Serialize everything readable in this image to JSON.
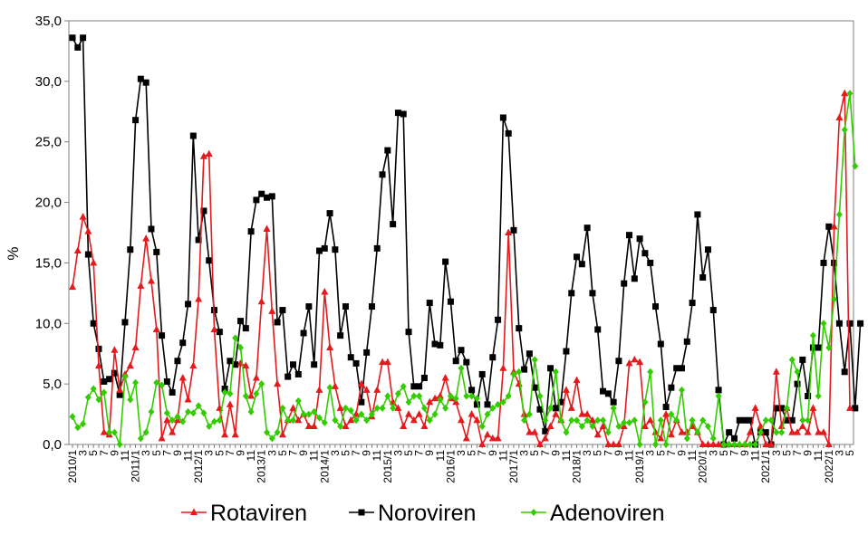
{
  "chart_data": {
    "type": "line",
    "ylabel": "%",
    "ylim": [
      0,
      35
    ],
    "y_ticks": [
      "0,0",
      "5,0",
      "10,0",
      "15,0",
      "20,0",
      "25,0",
      "30,0",
      "35,0"
    ],
    "y_tick_values": [
      0,
      5,
      10,
      15,
      20,
      25,
      30,
      35
    ],
    "x_tick_labels": [
      "2010/1",
      "3",
      "5",
      "7",
      "9",
      "11",
      "2011/1",
      "3",
      "5",
      "7",
      "9",
      "11",
      "2012/1",
      "3",
      "5",
      "7",
      "9",
      "11",
      "2013/1",
      "3",
      "5",
      "7",
      "9",
      "11",
      "2014/1",
      "3",
      "5",
      "7",
      "9",
      "11",
      "2015/1",
      "3",
      "5",
      "7",
      "9",
      "11",
      "2016/1",
      "3",
      "5",
      "7",
      "9",
      "11",
      "2017/1",
      "3",
      "5",
      "7",
      "9",
      "11",
      "2018/1",
      "3",
      "5",
      "7",
      "9",
      "11",
      "2019/1",
      "3",
      "5",
      "7",
      "9",
      "11",
      "2020/1",
      "3",
      "5",
      "7",
      "9",
      "11",
      "2021/1",
      "3",
      "5",
      "7",
      "9",
      "11",
      "2022/1",
      "3",
      "5"
    ],
    "legend_position": "bottom",
    "grid": false,
    "series": [
      {
        "name": "Rotaviren",
        "color": "#e41a1c",
        "marker": "triangle",
        "values": [
          13.0,
          16.0,
          18.8,
          17.6,
          15.0,
          6.5,
          1.0,
          0.8,
          7.8,
          4.5,
          5.8,
          6.5,
          8.0,
          13.1,
          17.0,
          13.5,
          9.5,
          0.5,
          2.0,
          1.0,
          2.0,
          5.5,
          3.7,
          6.5,
          12.0,
          23.8,
          24.0,
          9.5,
          3.0,
          0.8,
          3.3,
          0.8,
          6.7,
          6.5,
          4.0,
          5.5,
          11.8,
          17.8,
          11.0,
          5.0,
          0.8,
          2.0,
          3.0,
          2.0,
          2.5,
          1.5,
          1.5,
          4.5,
          12.6,
          8.0,
          4.8,
          3.0,
          1.5,
          2.0,
          2.5,
          5.0,
          4.5,
          2.3,
          4.5,
          6.8,
          6.8,
          3.5,
          3.0,
          1.5,
          2.5,
          2.0,
          2.5,
          1.5,
          3.5,
          3.8,
          4.0,
          5.5,
          3.8,
          3.5,
          2.0,
          0.5,
          2.5,
          2.0,
          0.0,
          0.8,
          0.5,
          0.5,
          6.3,
          17.5,
          6.0,
          5.0,
          2.5,
          1.0,
          1.0,
          0.0,
          0.5,
          1.5,
          2.5,
          2.0,
          4.5,
          3.0,
          5.3,
          2.5,
          2.5,
          2.0,
          0.8,
          1.5,
          0.0,
          0.0,
          0.0,
          1.5,
          6.7,
          7.0,
          6.8,
          1.5,
          2.0,
          1.0,
          0.5,
          2.5,
          0.8,
          2.0,
          1.0,
          1.0,
          1.5,
          1.0,
          0.0,
          0.0,
          0.0,
          0.0,
          0.0,
          0.0,
          0.0,
          0.0,
          0.0,
          1.0,
          3.0,
          1.5,
          0.0,
          0.0,
          6.0,
          1.5,
          3.0,
          1.0,
          1.0,
          1.5,
          1.0,
          3.0,
          1.0,
          1.0,
          0.0,
          18.0,
          27.0,
          29.0,
          3.0
        ]
      },
      {
        "name": "Noroviren",
        "color": "#000000",
        "marker": "square",
        "values": [
          33.6,
          32.8,
          33.6,
          15.7,
          10.0,
          7.9,
          5.2,
          5.4,
          5.9,
          4.1,
          10.1,
          16.1,
          26.8,
          30.2,
          29.9,
          17.8,
          15.9,
          9.0,
          5.2,
          4.3,
          6.9,
          8.4,
          11.6,
          25.5,
          16.9,
          19.3,
          15.2,
          11.1,
          9.3,
          4.6,
          6.9,
          6.6,
          10.2,
          9.6,
          17.6,
          20.2,
          20.7,
          20.4,
          20.5,
          10.1,
          11.1,
          5.6,
          6.6,
          5.8,
          9.2,
          11.4,
          6.6,
          16.0,
          16.2,
          19.1,
          16.1,
          9.0,
          11.4,
          7.2,
          6.7,
          3.5,
          7.6,
          11.4,
          16.2,
          22.3,
          24.3,
          18.2,
          27.4,
          27.3,
          9.3,
          4.8,
          4.8,
          5.5,
          11.7,
          8.3,
          8.2,
          15.1,
          11.8,
          6.9,
          7.8,
          6.8,
          4.5,
          3.3,
          5.8,
          3.3,
          7.2,
          10.3,
          27.0,
          25.7,
          17.7,
          9.6,
          6.2,
          7.5,
          4.7,
          2.9,
          1.1,
          6.3,
          3.0,
          3.5,
          7.7,
          12.5,
          15.5,
          14.9,
          17.9,
          12.5,
          9.5,
          4.4,
          4.2,
          3.5,
          6.9,
          13.3,
          17.3,
          13.7,
          17.0,
          15.8,
          15.0,
          11.4,
          8.3,
          3.1,
          4.7,
          6.3,
          6.3,
          8.5,
          11.7,
          19.0,
          13.8,
          16.1,
          11.1,
          4.5,
          0.0,
          1.0,
          0.5,
          2.0,
          2.0,
          2.0,
          0.0,
          1.0,
          1.0,
          0.0,
          3.0,
          3.0,
          2.0,
          2.0,
          5.0,
          7.0,
          4.0,
          8.0,
          8.0,
          15.0,
          18.0,
          15.0,
          10.0,
          6.0,
          10.0,
          3.0,
          10.0
        ]
      },
      {
        "name": "Adenoviren",
        "color": "#33cc00",
        "marker": "diamond",
        "values": [
          2.3,
          1.4,
          1.7,
          3.9,
          4.6,
          3.7,
          4.3,
          1.0,
          1.0,
          0.0,
          5.6,
          3.7,
          5.1,
          0.5,
          1.0,
          2.7,
          5.1,
          4.9,
          2.6,
          2.0,
          2.3,
          1.9,
          2.7,
          2.6,
          3.2,
          2.6,
          1.5,
          1.9,
          2.0,
          4.3,
          4.2,
          8.8,
          8.0,
          4.0,
          2.7,
          4.2,
          5.0,
          1.0,
          0.5,
          1.0,
          3.0,
          2.0,
          2.0,
          3.6,
          2.5,
          2.5,
          2.7,
          2.2,
          1.8,
          4.7,
          2.0,
          1.5,
          3.0,
          2.8,
          2.0,
          2.5,
          2.0,
          2.5,
          3.0,
          3.0,
          4.0,
          3.0,
          4.2,
          4.8,
          3.5,
          4.0,
          4.0,
          3.0,
          2.0,
          2.5,
          3.7,
          3.0,
          4.0,
          3.8,
          6.3,
          4.0,
          4.0,
          3.8,
          1.5,
          2.5,
          3.0,
          3.3,
          3.5,
          4.0,
          5.8,
          6.0,
          2.0,
          2.5,
          7.0,
          4.0,
          2.0,
          3.0,
          6.0,
          2.0,
          1.0,
          2.0,
          2.0,
          1.5,
          2.0,
          1.5,
          2.0,
          2.0,
          1.0,
          3.0,
          1.5,
          1.8,
          1.8,
          2.0,
          0.0,
          3.5,
          6.0,
          0.0,
          2.0,
          0.0,
          2.5,
          2.0,
          4.5,
          0.5,
          2.0,
          1.0,
          2.0,
          1.5,
          0.5,
          4.0,
          0.0,
          0.0,
          0.0,
          0.0,
          0.0,
          0.0,
          0.0,
          1.0,
          2.0,
          2.0,
          1.0,
          1.0,
          3.0,
          7.0,
          6.0,
          2.0,
          2.0,
          9.0,
          4.0,
          10.0,
          8.0,
          12.0,
          19.0,
          26.0,
          29.0,
          23.0
        ]
      }
    ]
  }
}
